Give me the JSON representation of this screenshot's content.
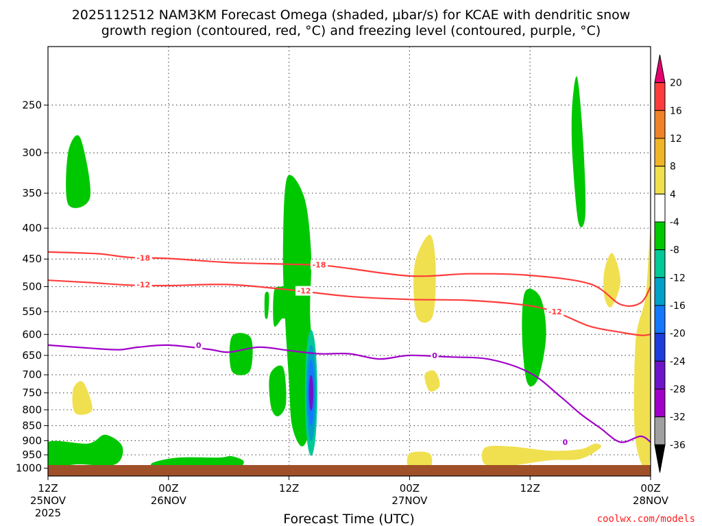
{
  "chart_data": {
    "type": "heatmap",
    "title_line1": "2025112512 NAM3KM Forecast Omega (shaded, μbar/s) for KCAE with dendritic snow",
    "title_line2": "growth region (contoured, red, °C) and freezing level (contoured, purple, °C)",
    "xlabel": "Forecast Time (UTC)",
    "ylabel": "",
    "x_unit": "hours from 12Z 25NOV",
    "xlim": [
      0,
      60
    ],
    "ylim": [
      1030,
      200
    ],
    "y_scale": "log-pressure (hPa)",
    "y_ticks": [
      250,
      300,
      350,
      400,
      450,
      500,
      550,
      600,
      650,
      700,
      750,
      800,
      850,
      900,
      950,
      1000
    ],
    "x_ticks": [
      {
        "hour": 0,
        "line1": "12Z",
        "line2": "25NOV",
        "line3": "2025"
      },
      {
        "hour": 12,
        "line1": "00Z",
        "line2": "26NOV",
        "line3": ""
      },
      {
        "hour": 24,
        "line1": "12Z",
        "line2": "",
        "line3": ""
      },
      {
        "hour": 36,
        "line1": "00Z",
        "line2": "27NOV",
        "line3": ""
      },
      {
        "hour": 48,
        "line1": "12Z",
        "line2": "",
        "line3": ""
      },
      {
        "hour": 60,
        "line1": "00Z",
        "line2": "28NOV",
        "line3": ""
      }
    ],
    "colorbar": {
      "labels": [
        "20",
        "16",
        "12",
        "8",
        "4",
        "-4",
        "-8",
        "-12",
        "-16",
        "-20",
        "-24",
        "-28",
        "-32",
        "-36"
      ],
      "colors": [
        "#e4006e",
        "#ff3c3c",
        "#f08228",
        "#f0b428",
        "#f0e050",
        "#ffffff",
        "#00c800",
        "#00c896",
        "#00a0c8",
        "#1478ff",
        "#1e3cdc",
        "#6e14c8",
        "#a000c8",
        "#a0a0a0",
        "#000000"
      ],
      "bounds": [
        24,
        20,
        16,
        12,
        8,
        4,
        -4,
        -8,
        -12,
        -16,
        -20,
        -24,
        -28,
        -32,
        -36,
        -40
      ]
    },
    "contours": [
      {
        "name": "-18",
        "color": "#ff3c3c",
        "label": "-18",
        "points": [
          [
            0,
            438
          ],
          [
            5,
            441
          ],
          [
            8,
            447
          ],
          [
            12,
            449
          ],
          [
            18,
            456
          ],
          [
            24,
            459
          ],
          [
            28,
            462
          ],
          [
            36,
            480
          ],
          [
            42,
            476
          ],
          [
            48,
            479
          ],
          [
            54,
            495
          ],
          [
            57,
            535
          ],
          [
            59,
            532
          ],
          [
            60,
            500
          ]
        ],
        "labels_at": [
          [
            9.5,
            448
          ],
          [
            27,
            460
          ]
        ]
      },
      {
        "name": "-12",
        "color": "#ff3c3c",
        "label": "-12",
        "points": [
          [
            0,
            488
          ],
          [
            4,
            492
          ],
          [
            8,
            497
          ],
          [
            12,
            498
          ],
          [
            18,
            496
          ],
          [
            24,
            506
          ],
          [
            30,
            519
          ],
          [
            36,
            525
          ],
          [
            42,
            527
          ],
          [
            48,
            538
          ],
          [
            51,
            555
          ],
          [
            54,
            582
          ],
          [
            57,
            595
          ],
          [
            59,
            602
          ],
          [
            60,
            600
          ]
        ],
        "labels_at": [
          [
            9.5,
            496
          ],
          [
            25.5,
            508
          ],
          [
            50.5,
            550
          ]
        ]
      },
      {
        "name": "freezing-0",
        "color": "#a000c8",
        "label": "0",
        "points": [
          [
            0,
            625
          ],
          [
            4,
            632
          ],
          [
            7,
            636
          ],
          [
            9,
            630
          ],
          [
            12,
            625
          ],
          [
            16,
            635
          ],
          [
            18,
            642
          ],
          [
            21,
            630
          ],
          [
            24,
            638
          ],
          [
            27,
            646
          ],
          [
            30,
            646
          ],
          [
            33,
            659
          ],
          [
            36,
            650
          ],
          [
            40,
            654
          ],
          [
            44,
            660
          ],
          [
            48,
            695
          ],
          [
            51,
            760
          ],
          [
            53,
            812
          ],
          [
            55,
            858
          ],
          [
            57,
            905
          ],
          [
            59,
            885
          ],
          [
            60,
            905
          ]
        ],
        "labels_at": [
          [
            15,
            625
          ],
          [
            38.5,
            650
          ],
          [
            51.5,
            905
          ]
        ]
      }
    ],
    "shaded_regions": [
      {
        "level": -4,
        "color": "#00c800",
        "label": "upper-left ascent",
        "points": [
          [
            2,
            300
          ],
          [
            3.2,
            283
          ],
          [
            4.2,
            355
          ],
          [
            2,
            365
          ]
        ]
      },
      {
        "level": -4,
        "color": "#00c800",
        "label": "12Z 26NOV column",
        "points": [
          [
            23.8,
            330
          ],
          [
            25.5,
            355
          ],
          [
            26.2,
            440
          ],
          [
            26.1,
            560
          ],
          [
            26.6,
            720
          ],
          [
            26.2,
            850
          ],
          [
            25.3,
            920
          ],
          [
            24.3,
            850
          ],
          [
            24,
            720
          ],
          [
            23.6,
            560
          ],
          [
            23.4,
            440
          ]
        ]
      },
      {
        "level": -4,
        "color": "#00c800",
        "label": "mid-level cell",
        "points": [
          [
            23.2,
            500
          ],
          [
            24.2,
            505
          ],
          [
            23.8,
            560
          ],
          [
            23.3,
            565
          ],
          [
            22.5,
            580
          ],
          [
            22.5,
            510
          ]
        ]
      },
      {
        "level": -4,
        "color": "#00c800",
        "label": "low cell",
        "points": [
          [
            22.1,
            700
          ],
          [
            23.4,
            680
          ],
          [
            23.7,
            780
          ],
          [
            22.9,
            820
          ],
          [
            22.2,
            790
          ]
        ]
      },
      {
        "level": -4,
        "color": "#00c800",
        "label": "narrow strip",
        "points": [
          [
            21.6,
            515
          ],
          [
            22,
            515
          ],
          [
            21.9,
            560
          ],
          [
            21.6,
            560
          ]
        ]
      },
      {
        "level": -4,
        "color": "#00c800",
        "label": "block near 18Z",
        "points": [
          [
            18.3,
            605
          ],
          [
            20.2,
            608
          ],
          [
            20.1,
            690
          ],
          [
            18.3,
            690
          ]
        ]
      },
      {
        "level": -4,
        "color": "#00c800",
        "label": "low-level band 26NOV",
        "points": [
          [
            10.5,
            978
          ],
          [
            13,
            960
          ],
          [
            17,
            960
          ],
          [
            18.3,
            955
          ],
          [
            19.5,
            975
          ],
          [
            18.3,
            1000
          ],
          [
            12,
            1003
          ],
          [
            10.5,
            995
          ]
        ]
      },
      {
        "level": -4,
        "color": "#00c800",
        "label": "surface band left",
        "points": [
          [
            0,
            905
          ],
          [
            4,
            910
          ],
          [
            5.7,
            880
          ],
          [
            7.4,
            920
          ],
          [
            6.7,
            985
          ],
          [
            3,
            985
          ],
          [
            0,
            990
          ]
        ]
      },
      {
        "level": -4,
        "color": "#00c800",
        "label": "right column",
        "points": [
          [
            47.5,
            510
          ],
          [
            49,
            520
          ],
          [
            49.6,
            600
          ],
          [
            48.8,
            710
          ],
          [
            47.7,
            720
          ],
          [
            47.2,
            600
          ]
        ]
      },
      {
        "level": -4,
        "color": "#00c800",
        "label": "upper right spike",
        "points": [
          [
            52.2,
            250
          ],
          [
            52.7,
            225
          ],
          [
            53.3,
            290
          ],
          [
            53.5,
            380
          ],
          [
            52.8,
            390
          ],
          [
            52.2,
            300
          ]
        ]
      },
      {
        "level": 4,
        "color": "#f0e050",
        "label": "positive cell 27NOV",
        "points": [
          [
            36.5,
            460
          ],
          [
            38,
            410
          ],
          [
            38.6,
            460
          ],
          [
            38.3,
            560
          ],
          [
            36.7,
            560
          ]
        ]
      },
      {
        "level": 4,
        "color": "#f0e050",
        "label": "positive cell low 27NOV",
        "points": [
          [
            37.5,
            700
          ],
          [
            38.5,
            690
          ],
          [
            39,
            730
          ],
          [
            38,
            745
          ]
        ]
      },
      {
        "level": 4,
        "color": "#f0e050",
        "label": "lower right positive band",
        "points": [
          [
            43.5,
            925
          ],
          [
            46,
            920
          ],
          [
            50,
            935
          ],
          [
            53,
            930
          ],
          [
            54.5,
            910
          ],
          [
            55,
            925
          ],
          [
            53,
            965
          ],
          [
            50,
            970
          ],
          [
            46,
            990
          ],
          [
            43.5,
            985
          ]
        ]
      },
      {
        "level": 4,
        "color": "#f0e050",
        "label": "right edge positive",
        "points": [
          [
            58.5,
            620
          ],
          [
            59.5,
            520
          ],
          [
            60,
            420
          ],
          [
            60,
            950
          ],
          [
            58.5,
            900
          ]
        ]
      },
      {
        "level": 4,
        "color": "#f0e050",
        "label": "positive low left",
        "points": [
          [
            2.5,
            740
          ],
          [
            3.5,
            720
          ],
          [
            4.4,
            800
          ],
          [
            2.7,
            810
          ]
        ]
      },
      {
        "level": 4,
        "color": "#f0e050",
        "label": "positive upper right",
        "points": [
          [
            55.4,
            470
          ],
          [
            56.2,
            440
          ],
          [
            57,
            490
          ],
          [
            56.1,
            540
          ],
          [
            55.4,
            520
          ]
        ]
      },
      {
        "level": 4,
        "color": "#f0e050",
        "label": "positive low center",
        "points": [
          [
            36,
            945
          ],
          [
            38,
            945
          ],
          [
            38,
            1000
          ],
          [
            36,
            1000
          ]
        ]
      }
    ],
    "core_max": {
      "level": -32,
      "hour": 26.2,
      "pressure": 750,
      "colors": [
        "#00c896",
        "#00a0c8",
        "#1478ff",
        "#6e14c8"
      ]
    },
    "terrain_color": "#a05028"
  },
  "credit": "coolwx.com/models"
}
